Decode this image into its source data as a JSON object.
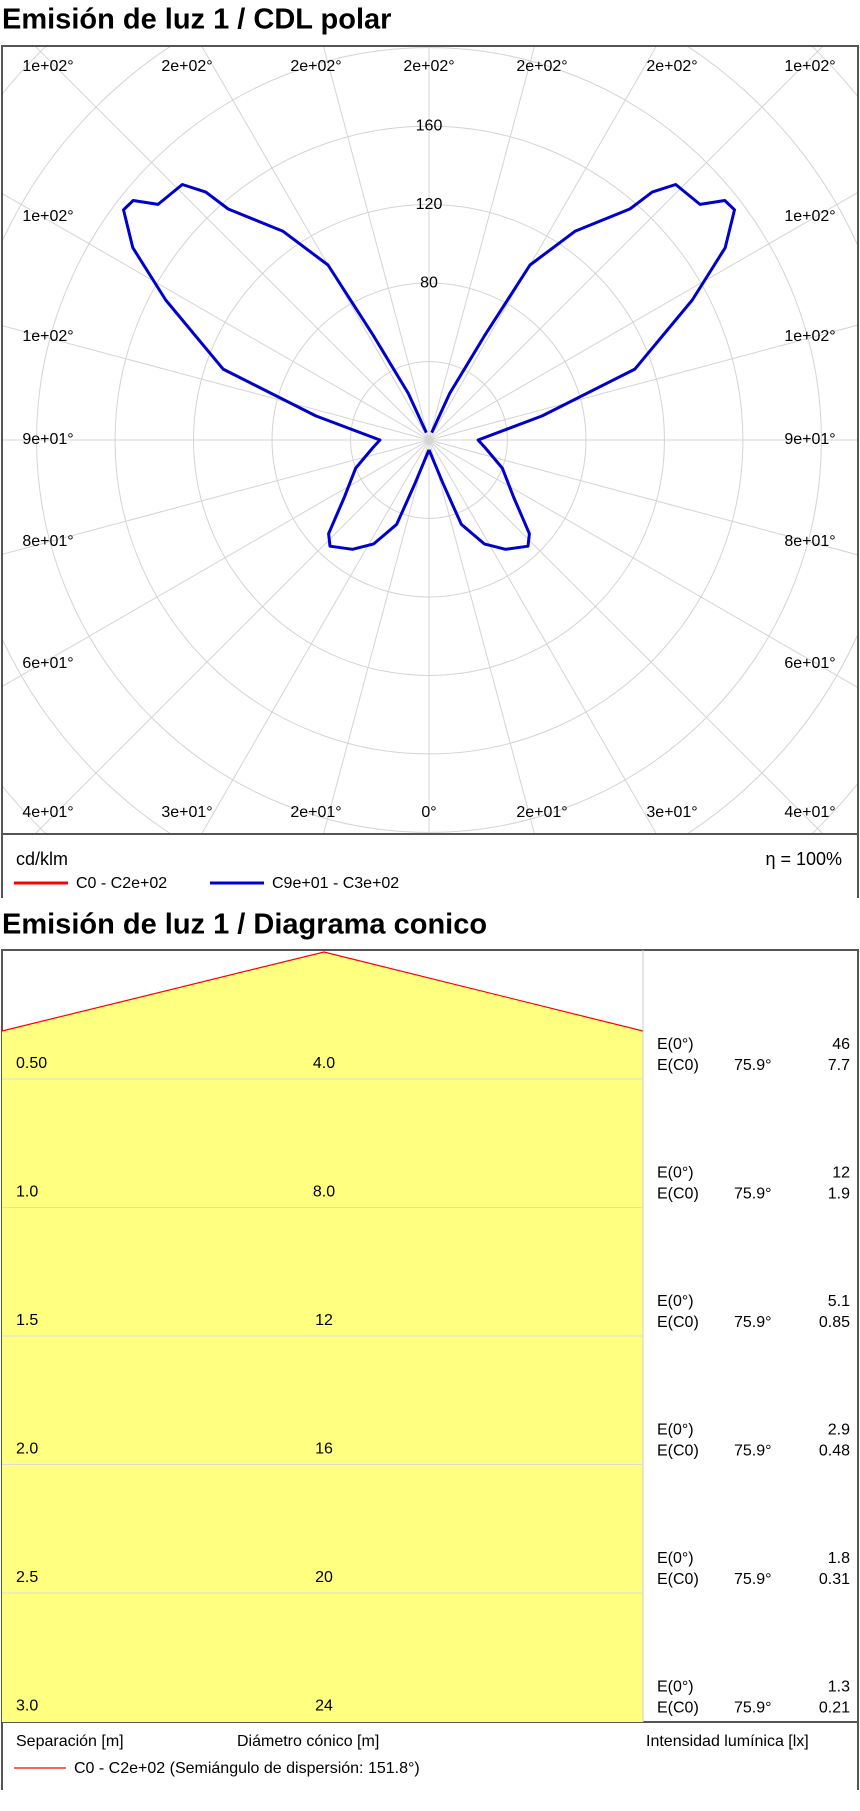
{
  "chart_data": {
    "type": "polar",
    "title": "Emisión de luz 1 / CDL polar",
    "angle_labels": {
      "top": [
        "1e+02°",
        "2e+02°",
        "2e+02°",
        "2e+02°",
        "2e+02°",
        "2e+02°",
        "1e+02°"
      ],
      "left": [
        "1e+02°",
        "1e+02°",
        "9e+01°",
        "8e+01°",
        "6e+01°"
      ],
      "right": [
        "1e+02°",
        "1e+02°",
        "9e+01°",
        "8e+01°",
        "6e+01°"
      ],
      "bottom": [
        "4e+01°",
        "3e+01°",
        "2e+01°",
        "0°",
        "2e+01°",
        "3e+01°",
        "4e+01°"
      ]
    },
    "unit": "cd/klm",
    "efficiency": "η = 100%",
    "rgrid": [
      40,
      80,
      120,
      160,
      200,
      240,
      280
    ],
    "rticks": [
      80,
      120,
      160
    ],
    "x": [
      0,
      18,
      21,
      28,
      35,
      43,
      47,
      56,
      69,
      82,
      90,
      102,
      109,
      118,
      123,
      127,
      129,
      131,
      136,
      138,
      139,
      145,
      150,
      152,
      156,
      160
    ],
    "series": [
      {
        "name": "C0 - C2e+02",
        "color": "#ff0000"
      },
      {
        "name": "C9e+01 - C3e+02",
        "color": "#0000cc",
        "values": [
          5,
          24,
          46,
          60,
          68,
          74,
          70,
          52,
          40,
          29,
          25,
          59,
          111,
          152,
          180,
          195,
          194,
          183,
          181,
          170,
          156,
          130,
          103,
          60,
          26,
          4
        ]
      }
    ]
  },
  "cone_diagram": {
    "title": "Emisión de luz 1 / Diagrama conico",
    "rows": [
      {
        "distance": "0.50",
        "diameter": "4.0",
        "e0_label": "E(0°)",
        "e0": "46",
        "ec0_label": "E(C0)",
        "angle": "75.9°",
        "ec0": "7.7"
      },
      {
        "distance": "1.0",
        "diameter": "8.0",
        "e0_label": "E(0°)",
        "e0": "12",
        "ec0_label": "E(C0)",
        "angle": "75.9°",
        "ec0": "1.9"
      },
      {
        "distance": "1.5",
        "diameter": "12",
        "e0_label": "E(0°)",
        "e0": "5.1",
        "ec0_label": "E(C0)",
        "angle": "75.9°",
        "ec0": "0.85"
      },
      {
        "distance": "2.0",
        "diameter": "16",
        "e0_label": "E(0°)",
        "e0": "2.9",
        "ec0_label": "E(C0)",
        "angle": "75.9°",
        "ec0": "0.48"
      },
      {
        "distance": "2.5",
        "diameter": "20",
        "e0_label": "E(0°)",
        "e0": "1.8",
        "ec0_label": "E(C0)",
        "angle": "75.9°",
        "ec0": "0.31"
      },
      {
        "distance": "3.0",
        "diameter": "24",
        "e0_label": "E(0°)",
        "e0": "1.3",
        "ec0_label": "E(C0)",
        "angle": "75.9°",
        "ec0": "0.21"
      }
    ],
    "footer": {
      "distance": "Separación [m]",
      "diameter": "Diámetro cónico [m]",
      "intensity": "Intensidad lumínica [lx]"
    },
    "legend": "C0 - C2e+02 (Semiángulo de dispersión: 151.8°)"
  }
}
